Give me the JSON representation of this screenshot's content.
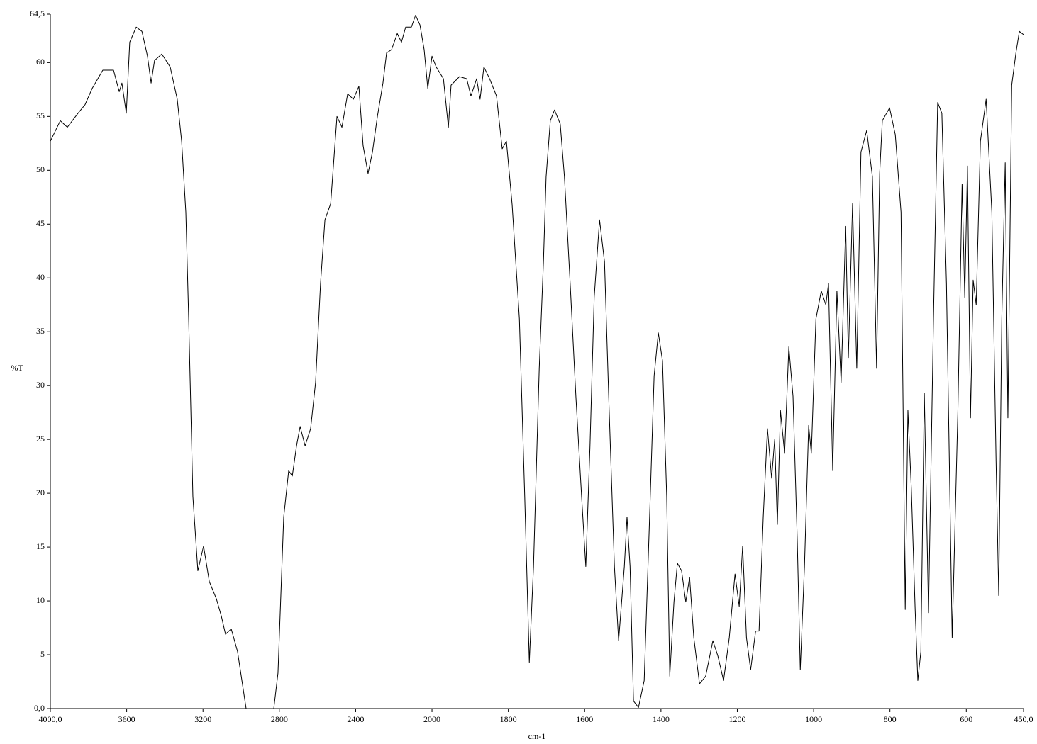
{
  "chart_data": {
    "type": "line",
    "x_label": "cm-1",
    "y_label": "%T",
    "xlim": [
      4000,
      450
    ],
    "ylim": [
      0,
      64.5
    ],
    "x_scale_break": 2000,
    "grid": false,
    "color": "#000000",
    "xticks": [
      {
        "value": 4000,
        "label": "4000,0"
      },
      3600,
      3200,
      2800,
      2400,
      2000,
      1800,
      1600,
      1400,
      1200,
      1000,
      800,
      600,
      {
        "value": 450,
        "label": "450,0"
      }
    ],
    "yticks": [
      {
        "value": 0,
        "label": "0,0"
      },
      5,
      10,
      15,
      20,
      25,
      30,
      35,
      40,
      45,
      50,
      55,
      60,
      {
        "value": 64.5,
        "label": "64,5"
      }
    ],
    "x": [
      4000,
      3948,
      3911,
      3855,
      3818,
      3781,
      3725,
      3669,
      3639,
      3625,
      3602,
      3584,
      3550,
      3520,
      3491,
      3472,
      3454,
      3416,
      3372,
      3335,
      3312,
      3290,
      3275,
      3253,
      3227,
      3197,
      3167,
      3130,
      3104,
      3082,
      3052,
      3019,
      2974,
      2829,
      2807,
      2777,
      2751,
      2732,
      2710,
      2691,
      2665,
      2636,
      2610,
      2584,
      2561,
      2531,
      2498,
      2472,
      2442,
      2412,
      2383,
      2361,
      2335,
      2312,
      2286,
      2257,
      2238,
      2212,
      2182,
      2160,
      2138,
      2108,
      2086,
      2063,
      2041,
      2022,
      2000,
      1989,
      1970,
      1957,
      1950,
      1928,
      1909,
      1898,
      1883,
      1874,
      1864,
      1849,
      1831,
      1816,
      1805,
      1790,
      1771,
      1757,
      1745,
      1734,
      1719,
      1708,
      1701,
      1690,
      1679,
      1664,
      1653,
      1638,
      1623,
      1608,
      1597,
      1586,
      1575,
      1561,
      1548,
      1537,
      1522,
      1511,
      1496,
      1489,
      1481,
      1472,
      1459,
      1444,
      1431,
      1418,
      1407,
      1396,
      1385,
      1377,
      1366,
      1357,
      1346,
      1335,
      1325,
      1314,
      1299,
      1283,
      1264,
      1251,
      1236,
      1221,
      1206,
      1195,
      1186,
      1176,
      1165,
      1152,
      1143,
      1132,
      1121,
      1110,
      1102,
      1095,
      1087,
      1076,
      1065,
      1054,
      1043,
      1035,
      1024,
      1013,
      1006,
      994,
      980,
      968,
      961,
      950,
      939,
      928,
      916,
      909,
      898,
      887,
      876,
      861,
      846,
      835,
      827,
      820,
      801,
      786,
      771,
      760,
      753,
      744,
      734,
      727,
      719,
      710,
      699,
      686,
      675,
      664,
      652,
      637,
      622,
      611,
      604,
      597,
      589,
      582,
      574,
      563,
      548,
      533,
      522,
      515,
      507,
      498,
      491,
      481,
      470,
      461,
      450
    ],
    "values": [
      52.7,
      54.6,
      54.0,
      55.3,
      56.1,
      57.6,
      59.3,
      59.3,
      57.3,
      58.1,
      55.3,
      61.9,
      63.3,
      62.9,
      60.6,
      58.1,
      60.2,
      60.8,
      59.6,
      56.6,
      52.7,
      46.1,
      36.2,
      19.7,
      12.8,
      15.1,
      11.8,
      10.2,
      8.6,
      6.9,
      7.4,
      5.3,
      0,
      0,
      3.3,
      17.8,
      22.1,
      21.6,
      24.4,
      26.2,
      24.4,
      26.0,
      30.3,
      39.5,
      45.4,
      46.9,
      55.0,
      54.0,
      57.1,
      56.6,
      57.8,
      52.3,
      49.7,
      51.7,
      55.0,
      58.1,
      60.9,
      61.2,
      62.7,
      61.9,
      63.3,
      63.3,
      64.4,
      63.5,
      61.2,
      57.6,
      60.6,
      59.6,
      58.5,
      54.0,
      57.9,
      58.7,
      58.5,
      56.9,
      58.5,
      56.6,
      59.6,
      58.5,
      56.9,
      52.0,
      52.7,
      46.8,
      36.2,
      19.7,
      4.3,
      13.2,
      31.6,
      41.5,
      49.4,
      54.6,
      55.6,
      54.3,
      49.4,
      39.5,
      29.0,
      19.7,
      13.2,
      24.4,
      38.2,
      45.4,
      41.5,
      29.0,
      13.2,
      6.3,
      13.2,
      17.8,
      13.2,
      0.7,
      0.1,
      2.6,
      16.5,
      30.9,
      34.9,
      32.3,
      19.7,
      3.0,
      9.9,
      13.5,
      12.8,
      9.9,
      12.2,
      6.6,
      2.3,
      3.0,
      6.3,
      4.9,
      2.6,
      6.6,
      12.5,
      9.5,
      15.1,
      6.6,
      3.6,
      7.2,
      7.2,
      17.8,
      26.0,
      21.4,
      25.0,
      17.1,
      27.7,
      23.7,
      33.6,
      29.0,
      15.8,
      3.6,
      13.2,
      26.3,
      23.7,
      36.2,
      38.8,
      37.5,
      39.5,
      22.1,
      38.8,
      30.3,
      44.8,
      32.6,
      46.9,
      31.6,
      51.7,
      53.7,
      49.4,
      31.6,
      49.7,
      54.6,
      55.8,
      53.3,
      46.1,
      9.2,
      27.7,
      20.4,
      9.2,
      2.6,
      5.3,
      29.3,
      8.9,
      36.2,
      56.3,
      55.3,
      39.5,
      6.6,
      27.7,
      48.7,
      38.2,
      50.4,
      27.0,
      39.8,
      37.5,
      52.7,
      56.6,
      46.1,
      23.0,
      10.5,
      36.2,
      50.7,
      27.0,
      57.9,
      60.9,
      62.9,
      62.6
    ]
  }
}
